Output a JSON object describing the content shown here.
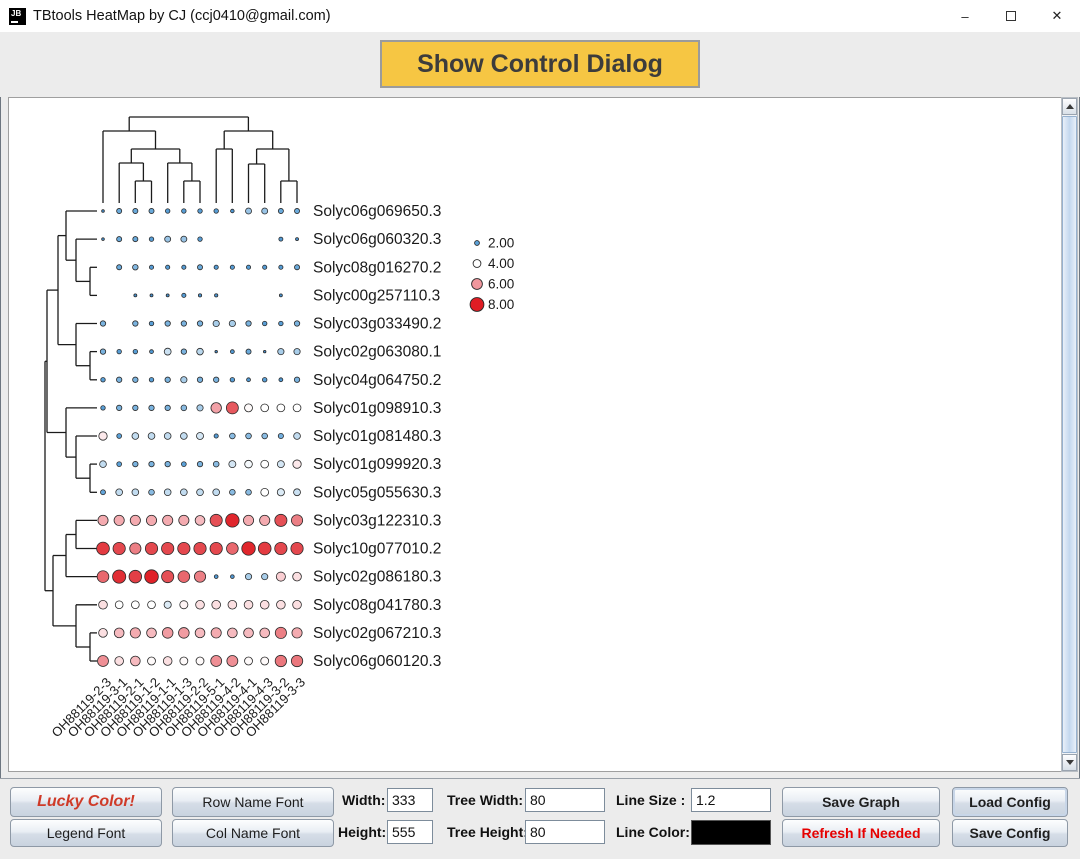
{
  "window": {
    "title": "TBtools HeatMap by CJ (ccj0410@gmail.com)",
    "icon_text": "JB",
    "minimize_glyph": "–",
    "close_glyph": "✕"
  },
  "toolbar": {
    "show_control_dialog": "Show Control Dialog"
  },
  "heatmap": {
    "type": "dot-heatmap",
    "columns": [
      "OH88119-2-3",
      "OH88119-3-1",
      "OH88119-2-1",
      "OH88119-1-2",
      "OH88119-1-1",
      "OH88119-1-3",
      "OH88119-2-2",
      "OH88119-5-1",
      "OH88119-4-2",
      "OH88119-4-1",
      "OH88119-4-3",
      "OH88119-3-2",
      "OH88119-3-3"
    ],
    "rows": [
      {
        "label": "Solyc06g069650.3",
        "values": [
          0.6,
          2.2,
          2.2,
          2.2,
          1.8,
          1.8,
          1.8,
          1.8,
          1.2,
          2.8,
          2.8,
          2.2,
          2.2
        ]
      },
      {
        "label": "Solyc06g060320.3",
        "values": [
          0.6,
          2.2,
          2.2,
          1.8,
          2.8,
          2.8,
          1.8,
          0,
          0,
          0,
          0,
          1.5,
          0.8
        ]
      },
      {
        "label": "Solyc08g016270.2",
        "values": [
          0,
          2.2,
          2.5,
          1.6,
          1.6,
          1.6,
          2.2,
          1.6,
          1.6,
          1.6,
          1.6,
          1.6,
          2.2
        ]
      },
      {
        "label": "Solyc00g257110.3",
        "values": [
          0,
          0,
          0.8,
          0.8,
          0.8,
          1.6,
          1.0,
          1.0,
          0,
          0,
          0,
          0.8,
          0
        ]
      },
      {
        "label": "Solyc03g033490.2",
        "values": [
          2.4,
          0,
          2.4,
          1.8,
          2.4,
          2.4,
          2.4,
          3.0,
          3.0,
          2.4,
          1.8,
          1.8,
          2.4
        ]
      },
      {
        "label": "Solyc02g063080.1",
        "values": [
          2.4,
          1.8,
          1.8,
          1.4,
          3.4,
          2.4,
          3.2,
          0.5,
          1.4,
          2.2,
          0.5,
          3.0,
          3.0
        ]
      },
      {
        "label": "Solyc04g064750.2",
        "values": [
          1.8,
          2.4,
          2.4,
          1.8,
          2.4,
          3.0,
          2.4,
          2.4,
          1.8,
          1.4,
          1.8,
          1.4,
          2.4
        ]
      },
      {
        "label": "Solyc01g098910.3",
        "values": [
          1.8,
          2.4,
          2.4,
          2.4,
          2.4,
          2.6,
          3.0,
          5.8,
          6.8,
          4.1,
          4.0,
          4.0,
          4.0
        ]
      },
      {
        "label": "Solyc01g081480.3",
        "values": [
          4.4,
          2.0,
          3.3,
          3.3,
          3.3,
          3.3,
          3.5,
          1.6,
          2.6,
          2.6,
          2.6,
          2.3,
          3.3
        ]
      },
      {
        "label": "Solyc01g099920.3",
        "values": [
          3.3,
          2.0,
          2.4,
          2.4,
          2.4,
          2.0,
          2.4,
          2.6,
          3.5,
          3.9,
          4.0,
          3.5,
          4.4
        ]
      },
      {
        "label": "Solyc05g055630.3",
        "values": [
          2.1,
          3.3,
          3.3,
          2.6,
          3.3,
          3.3,
          3.3,
          3.3,
          2.6,
          2.6,
          4.0,
          3.6,
          3.4
        ]
      },
      {
        "label": "Solyc03g122310.3",
        "values": [
          5.6,
          5.6,
          5.6,
          5.6,
          5.6,
          5.6,
          5.3,
          6.9,
          7.8,
          5.6,
          5.6,
          6.9,
          6.3
        ]
      },
      {
        "label": "Solyc10g077010.2",
        "values": [
          7.3,
          7.0,
          6.3,
          7.0,
          7.0,
          7.0,
          7.0,
          7.0,
          6.6,
          7.8,
          7.3,
          7.0,
          7.0
        ]
      },
      {
        "label": "Solyc02g086180.3",
        "values": [
          6.6,
          7.6,
          7.2,
          7.9,
          6.9,
          6.6,
          6.3,
          1.3,
          1.3,
          3.0,
          3.0,
          4.9,
          4.6
        ]
      },
      {
        "label": "Solyc08g041780.3",
        "values": [
          4.6,
          4.0,
          4.0,
          4.0,
          3.6,
          4.2,
          4.6,
          4.6,
          4.6,
          4.6,
          4.6,
          4.6,
          4.6
        ]
      },
      {
        "label": "Solyc02g067210.3",
        "values": [
          4.6,
          5.3,
          5.6,
          5.3,
          5.9,
          5.9,
          5.3,
          5.6,
          5.3,
          5.3,
          5.3,
          6.3,
          5.6
        ]
      },
      {
        "label": "Solyc06g060120.3",
        "values": [
          6.1,
          4.6,
          5.3,
          4.1,
          4.6,
          4.1,
          4.1,
          6.1,
          6.1,
          4.1,
          4.1,
          6.4,
          6.4
        ]
      }
    ],
    "legend": [
      {
        "value": 2,
        "label": "2.00"
      },
      {
        "value": 4,
        "label": "4.00"
      },
      {
        "value": 6,
        "label": "6.00"
      },
      {
        "value": 8,
        "label": "8.00"
      }
    ],
    "color_scale": {
      "low": "#5ba1d8",
      "mid": "#ffffff",
      "high": "#df1d24"
    }
  },
  "controls": {
    "lucky_color": "Lucky Color!",
    "legend_font": "Legend Font",
    "row_name_font": "Row Name Font",
    "col_name_font": "Col Name Font",
    "width_label": "Width:",
    "width_value": "333",
    "height_label": "Height:",
    "height_value": "555",
    "tree_width_label": "Tree Width:",
    "tree_width_value": "80",
    "tree_height_label": "Tree Height:",
    "tree_height_value": "80",
    "line_size_label": "Line Size :",
    "line_size_value": "1.2",
    "line_color_label": "Line Color:",
    "line_color_value": "#000000",
    "save_graph": "Save Graph",
    "refresh": "Refresh If Needed",
    "load_config": "Load Config",
    "save_config": "Save Config"
  }
}
